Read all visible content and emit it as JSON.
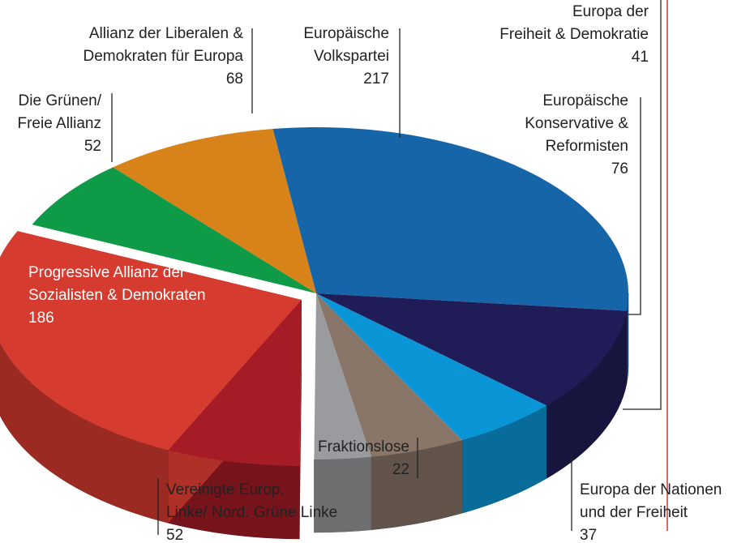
{
  "chart_data": {
    "type": "pie",
    "categories": [
      [
        "Europäische",
        "Volkspartei"
      ],
      [
        "Europäische",
        "Konservative &",
        "Reformisten"
      ],
      [
        "Europa der",
        "Freiheit & Demokratie"
      ],
      [
        "Europa der Nationen",
        "und der Freiheit"
      ],
      [
        "Fraktionslose"
      ],
      [
        "Vereinigte Europ.",
        "Linke/ Nord. Grüne Linke"
      ],
      [
        "Progressive Allianz der",
        "Sozialisten & Demokraten"
      ],
      [
        "Die Grünen/",
        "Freie Allianz"
      ],
      [
        "Allianz der Liberalen &",
        "Demokraten für Europa"
      ]
    ],
    "values": [
      217,
      76,
      41,
      37,
      22,
      52,
      186,
      52,
      68
    ],
    "colors": [
      "#1565a8",
      "#201c57",
      "#0a96d6",
      "#8a7669",
      "#9a9b9e",
      "#a51b26",
      "#d63b30",
      "#0f9a48",
      "#d8831a"
    ]
  }
}
